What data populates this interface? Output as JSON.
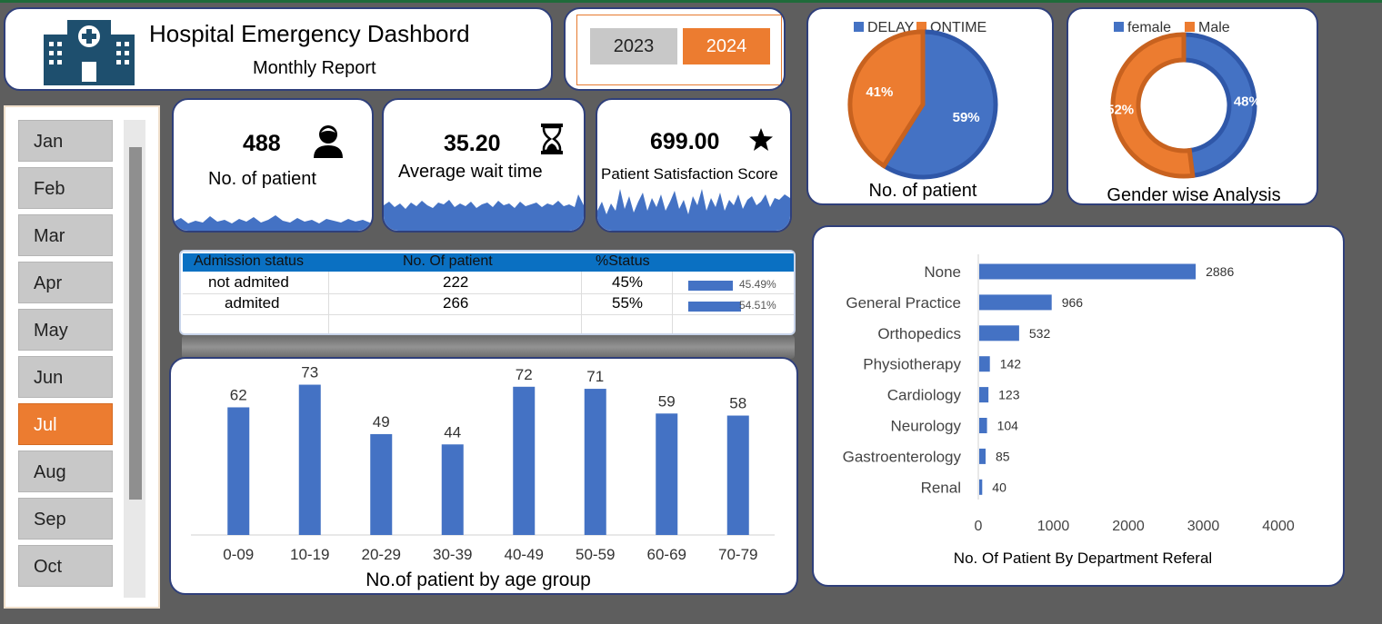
{
  "header": {
    "title": "Hospital Emergency Dashbord",
    "subtitle": "Monthly Report"
  },
  "years": {
    "y2023": "2023",
    "y2024": "2024",
    "selected": "2024"
  },
  "months": [
    "Jan",
    "Feb",
    "Mar",
    "Apr",
    "May",
    "Jun",
    "Jul",
    "Aug",
    "Sep",
    "Oct"
  ],
  "selected_month": "Jul",
  "kpis": {
    "patients": {
      "value": "488",
      "label": "No. of patient"
    },
    "wait": {
      "value": "35.20",
      "label": "Average wait time"
    },
    "satisfaction": {
      "value": "699.00",
      "label": "Patient Satisfaction Score"
    }
  },
  "admission": {
    "headers": [
      "Admission status",
      "No. Of patient",
      "%Status"
    ],
    "rows": [
      {
        "status": "not admited",
        "count": "222",
        "pct": "45%",
        "bar_label": "45.49%",
        "bar_value": 45.49
      },
      {
        "status": "admited",
        "count": "266",
        "pct": "55%",
        "bar_label": "54.51%",
        "bar_value": 54.51
      }
    ]
  },
  "colors": {
    "blue": "#4472c4",
    "orange": "#ec7c30",
    "border": "#2f3f7a",
    "header_blue": "#0a70c2"
  },
  "chart_data": [
    {
      "id": "age",
      "type": "bar",
      "title": "No.of patient by age group",
      "categories": [
        "0-09",
        "10-19",
        "20-29",
        "30-39",
        "40-49",
        "50-59",
        "60-69",
        "70-79"
      ],
      "values": [
        62,
        73,
        49,
        44,
        72,
        71,
        59,
        58
      ],
      "ylim": [
        0,
        75
      ]
    },
    {
      "id": "delay",
      "type": "pie",
      "title": "No. of patient",
      "legend": [
        "DELAY",
        "ONTIME"
      ],
      "values": [
        59,
        41
      ],
      "labels": [
        "59%",
        "41%"
      ]
    },
    {
      "id": "gender",
      "type": "pie",
      "title": "Gender wise Analysis",
      "legend": [
        "female",
        "Male"
      ],
      "values": [
        48,
        52
      ],
      "labels": [
        "48%",
        "52%"
      ]
    },
    {
      "id": "dept",
      "type": "bar",
      "orientation": "horizontal",
      "title": "No. Of Patient By Department Referal",
      "categories": [
        "None",
        "General Practice",
        "Orthopedics",
        "Physiotherapy",
        "Cardiology",
        "Neurology",
        "Gastroenterology",
        "Renal"
      ],
      "values": [
        2886,
        966,
        532,
        142,
        123,
        104,
        85,
        40
      ],
      "xlim": [
        0,
        4000
      ],
      "xticks": [
        "0",
        "1000",
        "2000",
        "3000",
        "4000"
      ]
    }
  ]
}
